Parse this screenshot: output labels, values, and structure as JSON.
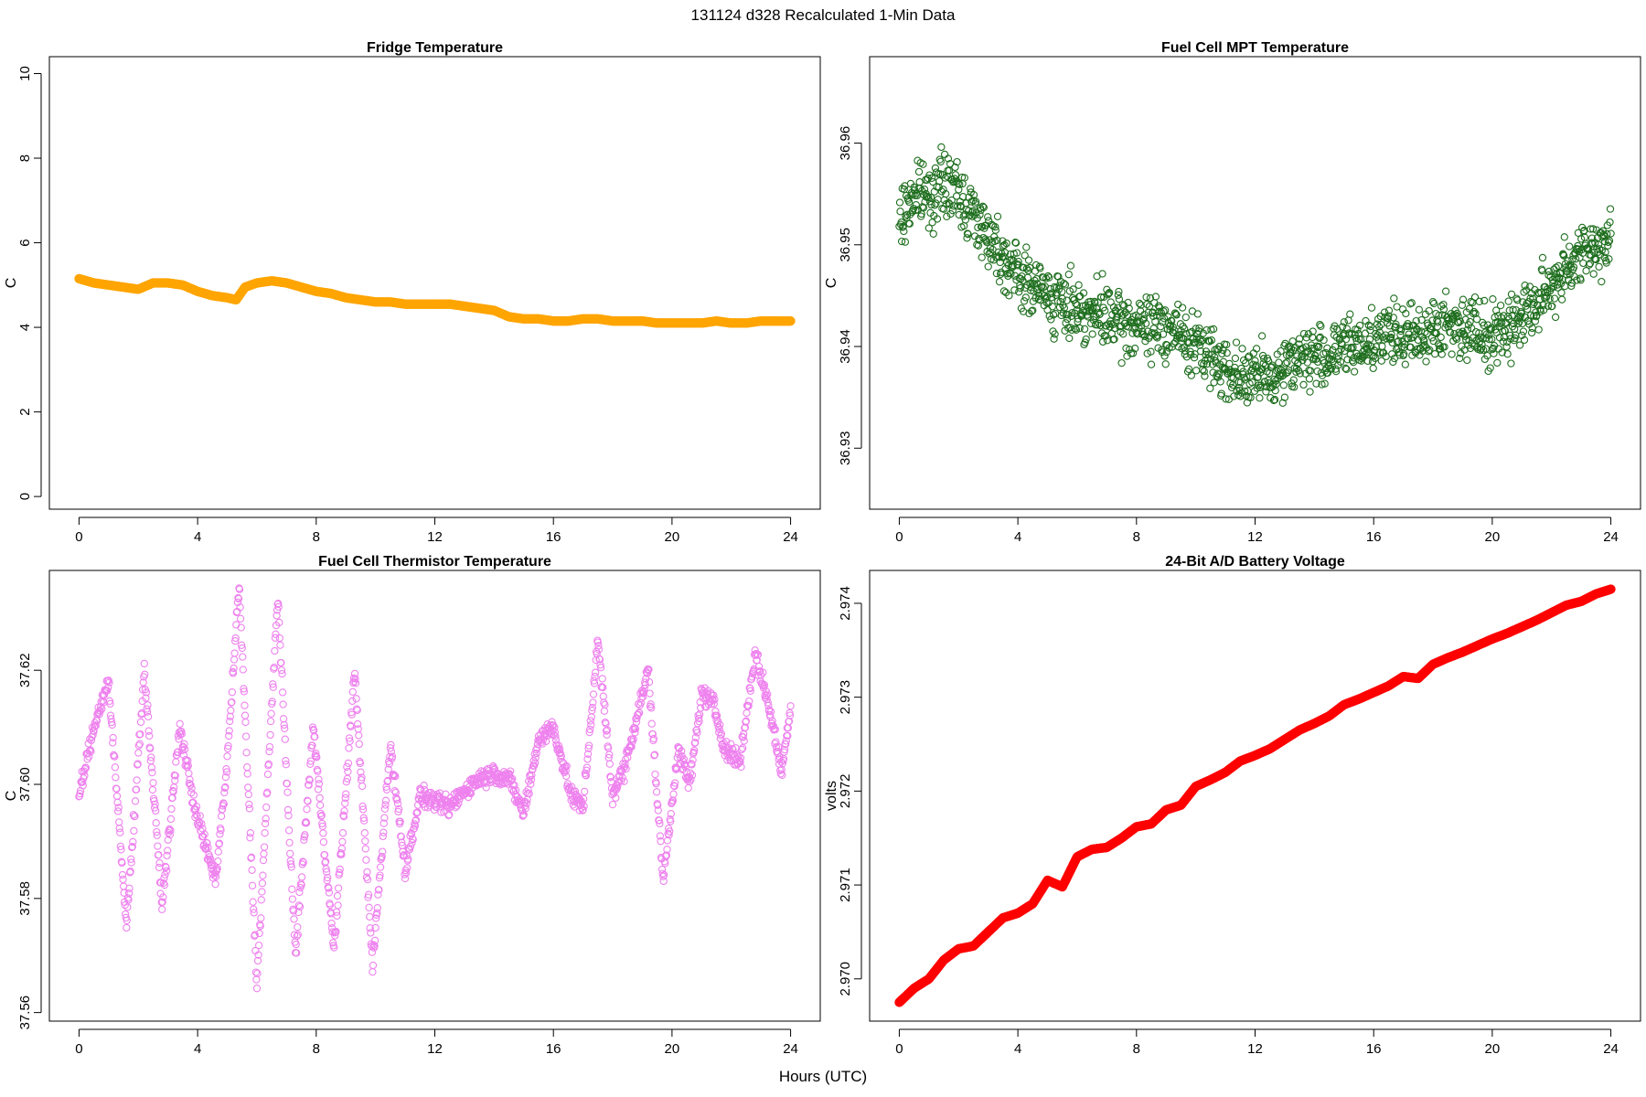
{
  "figure": {
    "suptitle": "131124   d328   Recalculated 1-Min Data",
    "xlabel": "Hours (UTC)"
  },
  "chart_data": [
    {
      "id": "fridge",
      "type": "scatter",
      "title": "Fridge Temperature",
      "xlabel": "",
      "ylabel": "C",
      "xlim": [
        -1,
        25
      ],
      "ylim": [
        -0.3,
        10.4
      ],
      "xticks": [
        0,
        4,
        8,
        12,
        16,
        20,
        24
      ],
      "yticks": [
        0,
        2,
        4,
        6,
        8,
        10
      ],
      "ytick_decimals": 0,
      "color": "#ffa500",
      "marker": "open-circle",
      "grid": false,
      "series": [
        {
          "name": "Fridge Temperature",
          "x": [
            0,
            0.5,
            1,
            1.5,
            2,
            2.5,
            3,
            3.5,
            4,
            4.5,
            5,
            5.3,
            5.6,
            6,
            6.5,
            7,
            7.5,
            8,
            8.5,
            9,
            9.5,
            10,
            10.5,
            11,
            11.5,
            12,
            12.5,
            13,
            13.5,
            14,
            14.5,
            15,
            15.5,
            16,
            16.5,
            17,
            17.5,
            18,
            18.5,
            19,
            19.5,
            20,
            20.5,
            21,
            21.5,
            22,
            22.5,
            23,
            23.5,
            24
          ],
          "values": [
            5.15,
            5.05,
            5.0,
            4.95,
            4.9,
            5.05,
            5.05,
            5.0,
            4.85,
            4.75,
            4.7,
            4.65,
            4.95,
            5.05,
            5.1,
            5.05,
            4.95,
            4.85,
            4.8,
            4.7,
            4.65,
            4.6,
            4.6,
            4.55,
            4.55,
            4.55,
            4.55,
            4.5,
            4.45,
            4.4,
            4.25,
            4.2,
            4.2,
            4.15,
            4.15,
            4.2,
            4.2,
            4.15,
            4.15,
            4.15,
            4.1,
            4.1,
            4.1,
            4.1,
            4.15,
            4.1,
            4.1,
            4.15,
            4.15,
            4.15
          ]
        }
      ]
    },
    {
      "id": "mpt",
      "type": "scatter",
      "title": "Fuel Cell MPT Temperature",
      "xlabel": "",
      "ylabel": "C",
      "xlim": [
        -1,
        25
      ],
      "ylim": [
        36.924,
        36.9685
      ],
      "xticks": [
        0,
        4,
        8,
        12,
        16,
        20,
        24
      ],
      "yticks": [
        36.93,
        36.94,
        36.95,
        36.96
      ],
      "ytick_decimals": 2,
      "color": "#1e6e1e",
      "marker": "open-circle",
      "grid": false,
      "series": [
        {
          "name": "Fuel Cell MPT Temperature",
          "x": [
            0,
            0.5,
            1,
            1.5,
            2,
            2.5,
            3,
            3.5,
            4,
            4.5,
            5,
            5.5,
            6,
            6.5,
            7,
            7.5,
            8,
            8.5,
            9,
            9.5,
            10,
            10.5,
            11,
            11.5,
            12,
            12.5,
            13,
            13.5,
            14,
            14.5,
            15,
            15.5,
            16,
            16.5,
            17,
            17.5,
            18,
            18.5,
            19,
            19.5,
            20,
            20.5,
            21,
            21.5,
            22,
            22.5,
            23,
            23.5,
            24
          ],
          "values": [
            36.952,
            36.955,
            36.955,
            36.956,
            36.955,
            36.953,
            36.951,
            36.949,
            36.947,
            36.946,
            36.945,
            36.944,
            36.944,
            36.943,
            36.943,
            36.942,
            36.942,
            36.942,
            36.942,
            36.941,
            36.94,
            36.939,
            36.938,
            36.937,
            36.937,
            36.937,
            36.938,
            36.939,
            36.939,
            36.939,
            36.94,
            36.94,
            36.941,
            36.941,
            36.941,
            36.941,
            36.942,
            36.942,
            36.942,
            36.942,
            36.941,
            36.942,
            36.943,
            36.944,
            36.946,
            36.948,
            36.949,
            36.95,
            36.95
          ],
          "spread": 0.0045,
          "points_per_hour": 60
        }
      ]
    },
    {
      "id": "thermistor",
      "type": "scatter",
      "title": "Fuel Cell Thermistor Temperature",
      "xlabel": "",
      "ylabel": "C",
      "xlim": [
        -1,
        25
      ],
      "ylim": [
        37.5585,
        37.6375
      ],
      "xticks": [
        0,
        4,
        8,
        12,
        16,
        20,
        24
      ],
      "yticks": [
        37.56,
        37.58,
        37.6,
        37.62
      ],
      "ytick_decimals": 2,
      "color": "#ee82ee",
      "marker": "open-circle",
      "grid": false,
      "series": [
        {
          "name": "Fuel Cell Thermistor Temperature",
          "x": [
            0,
            0.6,
            1.0,
            1.6,
            2.2,
            2.8,
            3.4,
            3.9,
            4.6,
            5.0,
            5.4,
            6.0,
            6.7,
            7.3,
            7.9,
            8.6,
            9.3,
            9.9,
            10.5,
            11.0,
            11.5,
            12.0,
            12.5,
            13.0,
            13.5,
            14.0,
            14.5,
            15.0,
            15.5,
            16.0,
            16.6,
            17.0,
            17.5,
            18.0,
            18.4,
            19.2,
            19.7,
            20.2,
            20.6,
            21.0,
            21.4,
            21.8,
            22.3,
            22.8,
            23.3,
            23.7,
            24.0
          ],
          "values": [
            37.598,
            37.612,
            37.618,
            37.575,
            37.62,
            37.579,
            37.61,
            37.596,
            37.583,
            37.604,
            37.635,
            37.565,
            37.633,
            37.57,
            37.61,
            37.571,
            37.62,
            37.568,
            37.607,
            37.585,
            37.598,
            37.597,
            37.596,
            37.599,
            37.601,
            37.602,
            37.601,
            37.595,
            37.608,
            37.61,
            37.598,
            37.596,
            37.625,
            37.598,
            37.603,
            37.62,
            37.583,
            37.606,
            37.6,
            37.616,
            37.614,
            37.606,
            37.604,
            37.623,
            37.613,
            37.602,
            37.614
          ],
          "spread": 0.0025,
          "points_per_hour": 60
        }
      ]
    },
    {
      "id": "battery",
      "type": "scatter",
      "title": "24-Bit A/D Battery Voltage",
      "xlabel": "",
      "ylabel": "volts",
      "xlim": [
        -1,
        25
      ],
      "ylim": [
        2.96955,
        2.97435
      ],
      "xticks": [
        0,
        4,
        8,
        12,
        16,
        20,
        24
      ],
      "yticks": [
        2.97,
        2.971,
        2.972,
        2.973,
        2.974
      ],
      "ytick_decimals": 3,
      "color": "#ff0000",
      "marker": "open-circle",
      "grid": false,
      "series": [
        {
          "name": "24-Bit A/D Battery Voltage",
          "x": [
            0,
            0.5,
            1,
            1.5,
            2,
            2.5,
            3,
            3.5,
            4,
            4.5,
            5,
            5.5,
            6,
            6.5,
            7,
            7.5,
            8,
            8.5,
            9,
            9.5,
            10,
            10.5,
            11,
            11.5,
            12,
            12.5,
            13,
            13.5,
            14,
            14.5,
            15,
            15.5,
            16,
            16.5,
            17,
            17.5,
            18,
            18.5,
            19,
            19.5,
            20,
            20.5,
            21,
            21.5,
            22,
            22.5,
            23,
            23.5,
            24
          ],
          "values": [
            2.96975,
            2.9699,
            2.97,
            2.9702,
            2.97032,
            2.97035,
            2.9705,
            2.97065,
            2.9707,
            2.9708,
            2.97105,
            2.97098,
            2.9713,
            2.97138,
            2.9714,
            2.9715,
            2.97162,
            2.97165,
            2.9718,
            2.97185,
            2.97205,
            2.97212,
            2.9722,
            2.97232,
            2.97238,
            2.97245,
            2.97255,
            2.97265,
            2.97272,
            2.9728,
            2.97292,
            2.97298,
            2.97305,
            2.97312,
            2.97322,
            2.9732,
            2.97335,
            2.97342,
            2.97348,
            2.97355,
            2.97362,
            2.97368,
            2.97375,
            2.97382,
            2.9739,
            2.97398,
            2.97402,
            2.9741,
            2.97415
          ],
          "points_per_hour": 60
        }
      ]
    }
  ]
}
